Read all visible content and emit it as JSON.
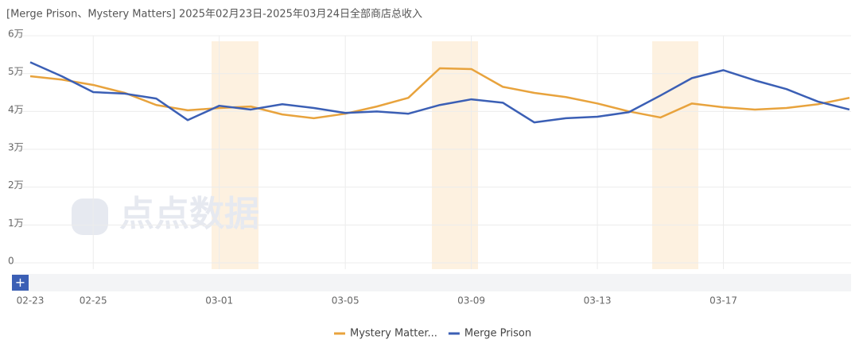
{
  "chart_data": {
    "type": "line",
    "title": "[Merge Prison、Mystery Matters] 2025年02月23日-2025年03月24日全部商店总收入",
    "watermark": "点点数据",
    "categories": [
      "02-23",
      null,
      "02-25",
      null,
      null,
      null,
      "03-01",
      null,
      null,
      null,
      "03-05",
      null,
      null,
      null,
      "03-09",
      null,
      null,
      null,
      "03-13",
      null,
      null,
      null,
      "03-17",
      null,
      null,
      null,
      null
    ],
    "series": [
      {
        "name": "Mystery Matter...",
        "color": "#e8a33d",
        "values": [
          49300,
          48400,
          47000,
          44900,
          41700,
          40300,
          40900,
          41300,
          39200,
          38200,
          39400,
          41300,
          43600,
          51400,
          51200,
          46500,
          44900,
          43800,
          42100,
          40000,
          38400,
          42100,
          41100,
          40500,
          40900,
          41900,
          43600
        ]
      },
      {
        "name": "Merge Prison",
        "color": "#3b5fb5",
        "values": [
          53000,
          49300,
          45100,
          44700,
          43400,
          37700,
          41500,
          40500,
          41900,
          40900,
          39600,
          40000,
          39400,
          41700,
          43200,
          42300,
          37100,
          38200,
          38600,
          39800,
          44200,
          48800,
          50900,
          48200,
          45900,
          42600,
          40500
        ]
      }
    ],
    "ylim": [
      0,
      60000
    ],
    "yticks": [
      0,
      {
        "value": 10000,
        "label": "1万"
      },
      {
        "value": 20000,
        "label": "2万"
      },
      {
        "value": 30000,
        "label": "3万"
      },
      {
        "value": 40000,
        "label": "4万"
      },
      {
        "value": 50000,
        "label": "5万"
      },
      {
        "value": 60000,
        "label": "6万"
      }
    ],
    "grid": true
  }
}
